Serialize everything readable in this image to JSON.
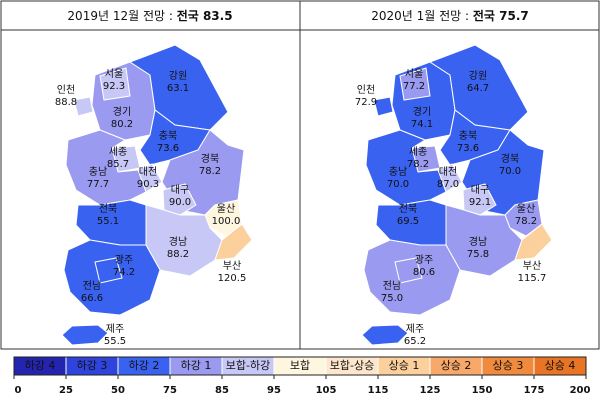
{
  "panels": [
    {
      "title": "2019년 12월 전망 : ",
      "title_bold": "전국 83.5",
      "regions": [
        {
          "name": "경기",
          "value": 80.2
        },
        {
          "name": "서울",
          "value": 92.3
        },
        {
          "name": "인천",
          "value": 88.8
        },
        {
          "name": "강원",
          "value": 63.1
        },
        {
          "name": "충북",
          "value": 73.6
        },
        {
          "name": "세종",
          "value": 85.7
        },
        {
          "name": "대전",
          "value": 90.3
        },
        {
          "name": "충남",
          "value": 77.7
        },
        {
          "name": "경북",
          "value": 78.2
        },
        {
          "name": "대구",
          "value": 90,
          "value_label": "90.0"
        },
        {
          "name": "울산",
          "value": 100,
          "value_label": "100.0"
        },
        {
          "name": "경남",
          "value": 88.2
        },
        {
          "name": "부산",
          "value": 120.5
        },
        {
          "name": "전북",
          "value": 55.1
        },
        {
          "name": "전남",
          "value": 66.6
        },
        {
          "name": "광주",
          "value": 74.2
        },
        {
          "name": "제주",
          "value": 55.5
        }
      ]
    },
    {
      "title": "2020년 1월 전망 : ",
      "title_bold": "전국 75.7",
      "regions": [
        {
          "name": "경기",
          "value": 74.1
        },
        {
          "name": "서울",
          "value": 77.2
        },
        {
          "name": "인천",
          "value": 72.9
        },
        {
          "name": "강원",
          "value": 64.7
        },
        {
          "name": "충북",
          "value": 73.6
        },
        {
          "name": "세종",
          "value": 78.2
        },
        {
          "name": "대전",
          "value": 87,
          "value_label": "87.0"
        },
        {
          "name": "충남",
          "value": 70,
          "value_label": "70.0"
        },
        {
          "name": "경북",
          "value": 70,
          "value_label": "70.0"
        },
        {
          "name": "대구",
          "value": 92.1
        },
        {
          "name": "울산",
          "value": 78.2
        },
        {
          "name": "경남",
          "value": 75.8
        },
        {
          "name": "부산",
          "value": 115.7
        },
        {
          "name": "전북",
          "value": 69.5
        },
        {
          "name": "전남",
          "value": 75,
          "value_label": "75.0"
        },
        {
          "name": "광주",
          "value": 80.6
        },
        {
          "name": "제주",
          "value": 65.2
        }
      ]
    }
  ],
  "legend": {
    "categories": [
      "하강 4",
      "하강 3",
      "하강 2",
      "하강 1",
      "보합-하강",
      "보합",
      "보합-상승",
      "상승 1",
      "상승 2",
      "상승 3",
      "상승 4"
    ],
    "colors": [
      "#2424b0",
      "#2f44dc",
      "#3a62f0",
      "#9a9af0",
      "#c8c8f6",
      "#fff6e0",
      "#fde6cc",
      "#fcd09c",
      "#f8a868",
      "#f08a3c",
      "#e87424"
    ],
    "ticks": [
      0,
      25,
      50,
      75,
      85,
      95,
      105,
      115,
      125,
      150,
      175,
      200
    ]
  }
}
